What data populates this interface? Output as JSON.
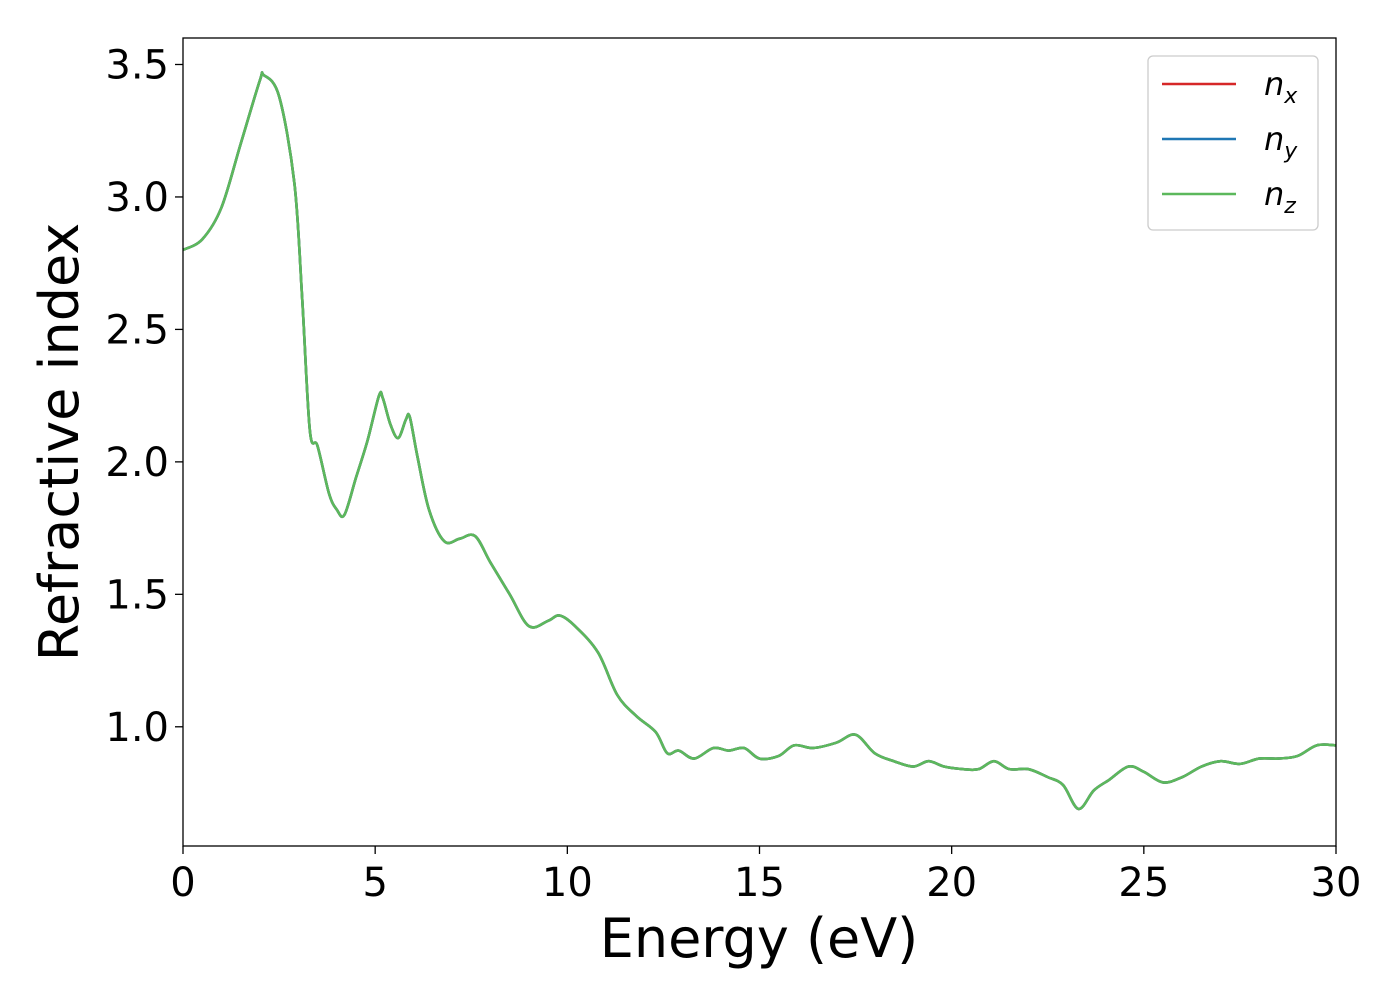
{
  "chart_data": {
    "type": "line",
    "xlabel": "Energy (eV)",
    "ylabel": "Refractive index",
    "xlim": [
      0,
      30
    ],
    "ylim": [
      0.55,
      3.6
    ],
    "xticks": [
      {
        "value": 0,
        "label": "0"
      },
      {
        "value": 5,
        "label": "5"
      },
      {
        "value": 10,
        "label": "10"
      },
      {
        "value": 15,
        "label": "15"
      },
      {
        "value": 20,
        "label": "20"
      },
      {
        "value": 25,
        "label": "25"
      },
      {
        "value": 30,
        "label": "30"
      }
    ],
    "yticks": [
      {
        "value": 1.0,
        "label": "1.0"
      },
      {
        "value": 1.5,
        "label": "1.5"
      },
      {
        "value": 2.0,
        "label": "2.0"
      },
      {
        "value": 2.5,
        "label": "2.5"
      },
      {
        "value": 3.0,
        "label": "3.0"
      },
      {
        "value": 3.5,
        "label": "3.5"
      }
    ],
    "grid": false,
    "legend_position": "top-right",
    "x": [
      0,
      0.5,
      1.0,
      1.5,
      2.0,
      2.1,
      2.5,
      2.9,
      3.1,
      3.3,
      3.5,
      3.8,
      4.0,
      4.2,
      4.5,
      4.8,
      5.1,
      5.2,
      5.4,
      5.6,
      5.8,
      5.9,
      6.1,
      6.4,
      6.8,
      7.2,
      7.6,
      8.0,
      8.5,
      9.0,
      9.5,
      9.8,
      10.2,
      10.8,
      11.3,
      11.8,
      12.3,
      12.6,
      12.9,
      13.3,
      13.8,
      14.2,
      14.6,
      15.0,
      15.5,
      15.9,
      16.4,
      17.0,
      17.5,
      18.0,
      18.5,
      19.0,
      19.4,
      19.8,
      20.3,
      20.7,
      21.1,
      21.5,
      22.0,
      22.5,
      22.9,
      23.3,
      23.7,
      24.1,
      24.6,
      25.0,
      25.5,
      26.0,
      26.5,
      27.0,
      27.5,
      28.0,
      28.5,
      29.0,
      29.5,
      30.0
    ],
    "series": [
      {
        "name": "n_x",
        "label": "n",
        "subscript": "x",
        "color": "#d62728",
        "y": [
          2.8,
          2.84,
          2.96,
          3.2,
          3.44,
          3.46,
          3.38,
          3.05,
          2.62,
          2.12,
          2.06,
          1.88,
          1.82,
          1.8,
          1.94,
          2.08,
          2.25,
          2.24,
          2.14,
          2.09,
          2.16,
          2.17,
          2.02,
          1.82,
          1.7,
          1.71,
          1.72,
          1.62,
          1.5,
          1.38,
          1.4,
          1.42,
          1.38,
          1.28,
          1.12,
          1.04,
          0.98,
          0.9,
          0.91,
          0.88,
          0.92,
          0.91,
          0.92,
          0.88,
          0.89,
          0.93,
          0.92,
          0.94,
          0.97,
          0.9,
          0.87,
          0.85,
          0.87,
          0.85,
          0.84,
          0.84,
          0.87,
          0.84,
          0.84,
          0.81,
          0.78,
          0.69,
          0.76,
          0.8,
          0.85,
          0.83,
          0.79,
          0.81,
          0.85,
          0.87,
          0.86,
          0.88,
          0.88,
          0.89,
          0.93,
          0.93
        ]
      },
      {
        "name": "n_y",
        "label": "n",
        "subscript": "y",
        "color": "#1f77b4",
        "y": [
          2.8,
          2.84,
          2.96,
          3.2,
          3.44,
          3.46,
          3.38,
          3.05,
          2.62,
          2.12,
          2.06,
          1.88,
          1.82,
          1.8,
          1.94,
          2.08,
          2.25,
          2.24,
          2.14,
          2.09,
          2.16,
          2.17,
          2.02,
          1.82,
          1.7,
          1.71,
          1.72,
          1.62,
          1.5,
          1.38,
          1.4,
          1.42,
          1.38,
          1.28,
          1.12,
          1.04,
          0.98,
          0.9,
          0.91,
          0.88,
          0.92,
          0.91,
          0.92,
          0.88,
          0.89,
          0.93,
          0.92,
          0.94,
          0.97,
          0.9,
          0.87,
          0.85,
          0.87,
          0.85,
          0.84,
          0.84,
          0.87,
          0.84,
          0.84,
          0.81,
          0.78,
          0.69,
          0.76,
          0.8,
          0.85,
          0.83,
          0.79,
          0.81,
          0.85,
          0.87,
          0.86,
          0.88,
          0.88,
          0.89,
          0.93,
          0.93
        ]
      },
      {
        "name": "n_z",
        "label": "n",
        "subscript": "z",
        "color": "#5cb85c",
        "y": [
          2.8,
          2.84,
          2.96,
          3.2,
          3.44,
          3.46,
          3.38,
          3.05,
          2.62,
          2.12,
          2.06,
          1.88,
          1.82,
          1.8,
          1.94,
          2.08,
          2.25,
          2.24,
          2.14,
          2.09,
          2.16,
          2.17,
          2.02,
          1.82,
          1.7,
          1.71,
          1.72,
          1.62,
          1.5,
          1.38,
          1.4,
          1.42,
          1.38,
          1.28,
          1.12,
          1.04,
          0.98,
          0.9,
          0.91,
          0.88,
          0.92,
          0.91,
          0.92,
          0.88,
          0.89,
          0.93,
          0.92,
          0.94,
          0.97,
          0.9,
          0.87,
          0.85,
          0.87,
          0.85,
          0.84,
          0.84,
          0.87,
          0.84,
          0.84,
          0.81,
          0.78,
          0.69,
          0.76,
          0.8,
          0.85,
          0.83,
          0.79,
          0.81,
          0.85,
          0.87,
          0.86,
          0.88,
          0.88,
          0.89,
          0.93,
          0.93
        ]
      }
    ]
  }
}
